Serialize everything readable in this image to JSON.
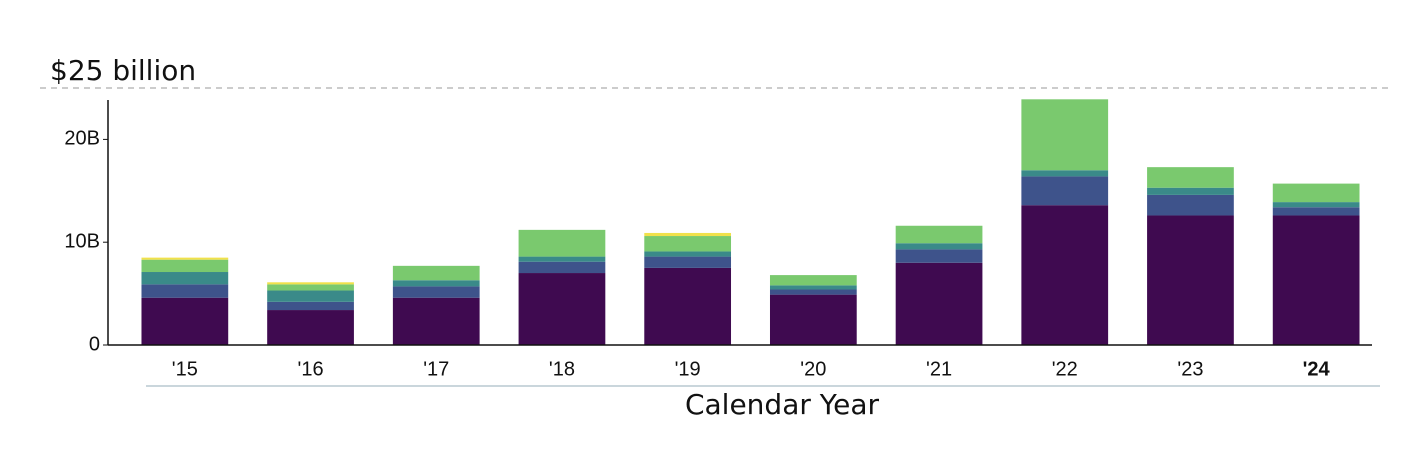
{
  "chart_data": {
    "type": "stacked_bar",
    "annotation": "$25 billion",
    "x_label": "Calendar Year",
    "categories": [
      "'15",
      "'16",
      "'17",
      "'18",
      "'19",
      "'20",
      "'21",
      "'22",
      "'23",
      "'24"
    ],
    "series": [
      {
        "color": "#3f0a50",
        "values": [
          4.6,
          3.4,
          4.6,
          7.0,
          7.5,
          4.9,
          8.0,
          13.6,
          12.6,
          12.6
        ]
      },
      {
        "color": "#3e538b",
        "values": [
          1.3,
          0.8,
          1.1,
          1.1,
          1.1,
          0.5,
          1.3,
          2.8,
          2.0,
          0.8
        ]
      },
      {
        "color": "#3a8a89",
        "values": [
          1.2,
          1.1,
          0.6,
          0.5,
          0.5,
          0.4,
          0.6,
          0.6,
          0.7,
          0.5
        ]
      },
      {
        "color": "#7ac96e",
        "values": [
          1.2,
          0.6,
          1.4,
          2.6,
          1.5,
          1.0,
          1.7,
          6.9,
          2.0,
          1.8
        ]
      },
      {
        "color": "#f1e14b",
        "values": [
          0.2,
          0.2,
          0,
          0,
          0.3,
          0,
          0,
          0,
          0,
          0
        ]
      }
    ],
    "ylim": [
      0,
      25
    ],
    "yticks": [
      0,
      {
        "value": 10,
        "label": "10B"
      },
      {
        "value": 20,
        "label": "20B"
      }
    ]
  }
}
